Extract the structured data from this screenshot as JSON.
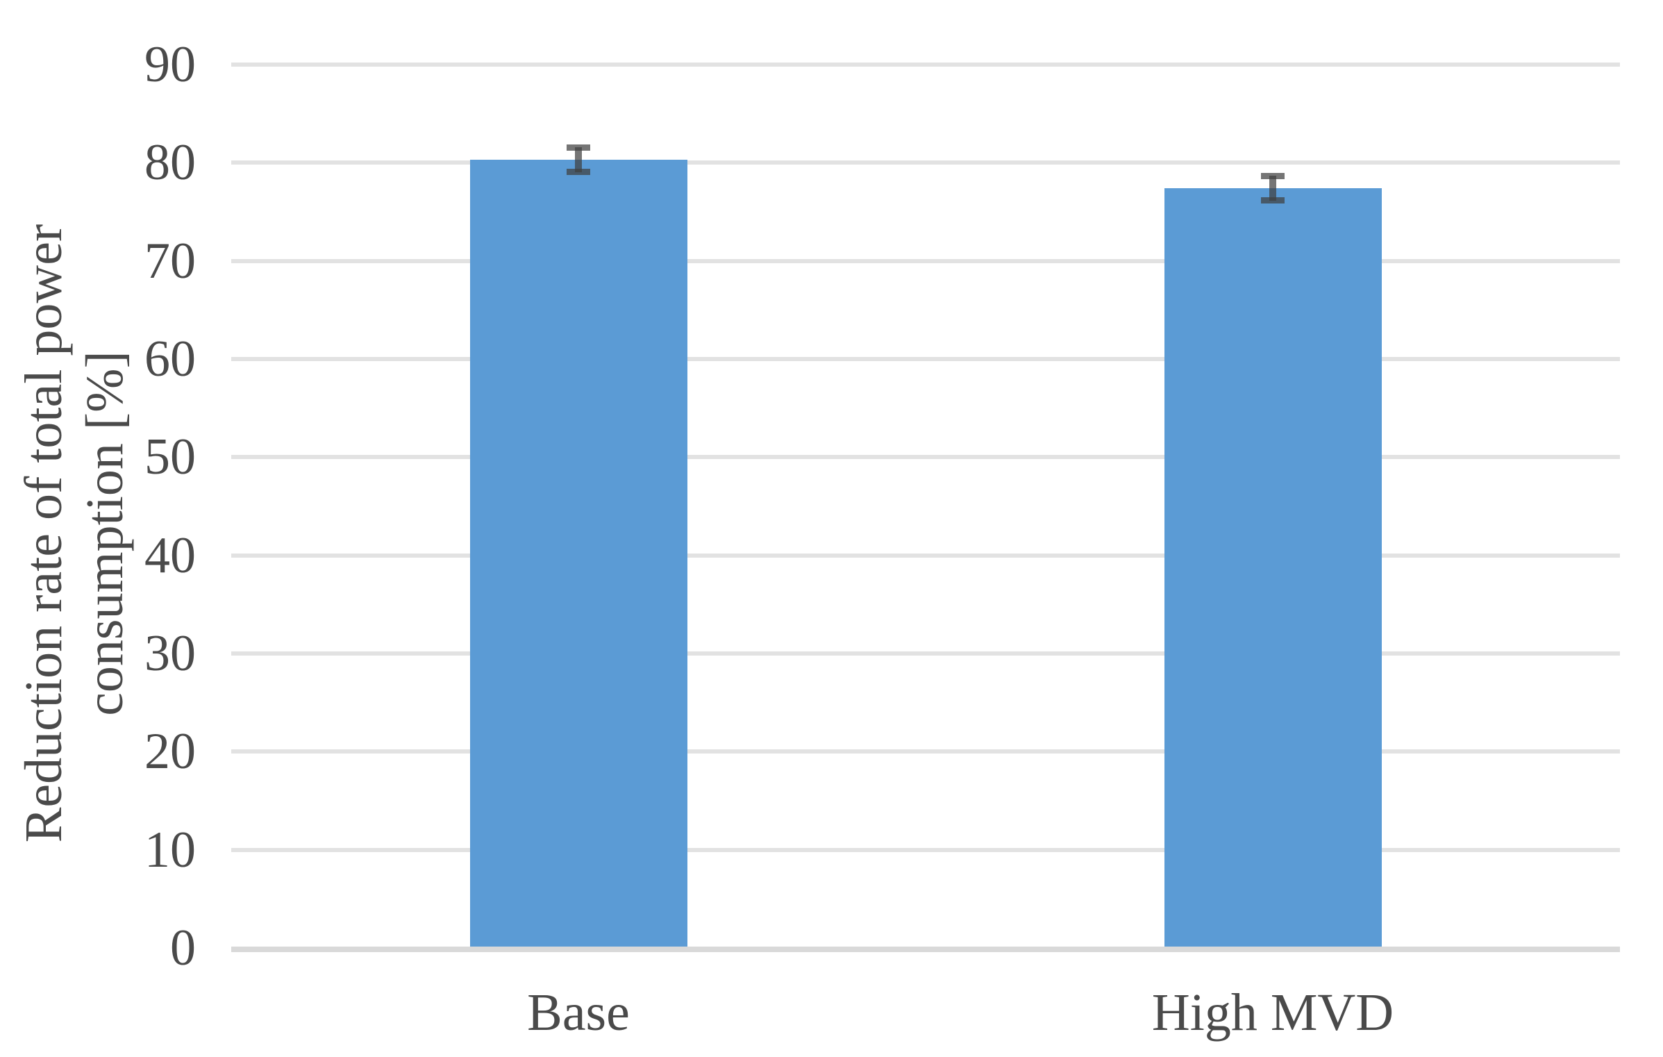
{
  "chart_data": {
    "type": "bar",
    "categories": [
      "Base",
      "High MVD"
    ],
    "values": [
      80.3,
      77.4
    ],
    "error_bars": [
      1.3,
      1.3
    ],
    "title": "",
    "xlabel": "",
    "ylabel": "Reduction rate of total power consumption [%]",
    "ylabel_lines": [
      "Reduction rate of total power",
      "consumption [%]"
    ],
    "ylim": [
      0,
      90
    ],
    "yticks": [
      0,
      10,
      20,
      30,
      40,
      50,
      60,
      70,
      80,
      90
    ],
    "grid": true,
    "legend": false,
    "colors": {
      "bar": "#5B9BD5",
      "gridline": "#E2E2E2",
      "axis_line": "#D9D9D9",
      "error_bar": "rgba(64,64,64,0.72)",
      "text": "#4A4A4A"
    }
  }
}
